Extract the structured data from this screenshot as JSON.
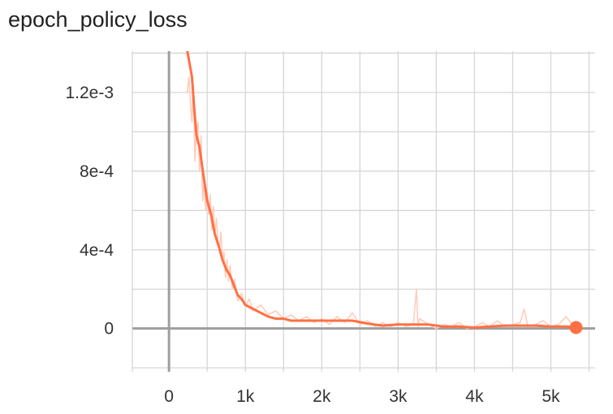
{
  "chart_data": {
    "type": "line",
    "title": "epoch_policy_loss",
    "xlabel": "",
    "ylabel": "",
    "xlim": [
      -480,
      5580
    ],
    "ylim": [
      -0.00022,
      0.00141
    ],
    "x_ticks": [
      0,
      1000,
      2000,
      3000,
      4000,
      5000
    ],
    "x_tick_labels": [
      "0",
      "1k",
      "2k",
      "3k",
      "4k",
      "5k"
    ],
    "y_ticks": [
      0,
      0.0004,
      0.0008,
      0.0012
    ],
    "y_tick_labels": [
      "0",
      "4e-4",
      "8e-4",
      "1.2e-3"
    ],
    "grid": true,
    "legend": "none",
    "colors": {
      "smoothed": "#ff7043",
      "raw": "#ffccbc",
      "axis": "#9e9e9e",
      "grid": "#d6d6d6"
    },
    "series": [
      {
        "smoothed": true,
        "x": [
          240,
          300,
          330,
          360,
          400,
          450,
          500,
          550,
          600,
          650,
          700,
          750,
          800,
          850,
          900,
          950,
          1000,
          1100,
          1200,
          1300,
          1400,
          1500,
          1600,
          1700,
          1800,
          1900,
          2000,
          2200,
          2400,
          2600,
          2800,
          3000,
          3200,
          3400,
          3600,
          3800,
          4000,
          4200,
          4400,
          4600,
          4800,
          5000,
          5200,
          5330
        ],
        "y": [
          0.00141,
          0.00128,
          0.00112,
          0.00098,
          0.00092,
          0.00078,
          0.00065,
          0.00058,
          0.00048,
          0.00042,
          0.00035,
          0.0003,
          0.00027,
          0.00022,
          0.00017,
          0.00015,
          0.00012,
          0.0001,
          8e-05,
          6e-05,
          5e-05,
          5e-05,
          4e-05,
          4e-05,
          4e-05,
          4e-05,
          4e-05,
          4e-05,
          4e-05,
          2.5e-05,
          1.5e-05,
          2e-05,
          2e-05,
          2e-05,
          1e-05,
          1e-05,
          5e-06,
          1e-05,
          1.5e-05,
          1.5e-05,
          1.5e-05,
          1e-05,
          1e-05,
          5e-06
        ]
      },
      {
        "smoothed": false,
        "x": [
          240,
          260,
          280,
          300,
          320,
          340,
          360,
          380,
          400,
          420,
          440,
          460,
          480,
          500,
          520,
          540,
          560,
          580,
          600,
          620,
          640,
          660,
          680,
          700,
          720,
          740,
          760,
          780,
          800,
          830,
          860,
          900,
          950,
          1000,
          1050,
          1100,
          1200,
          1300,
          1400,
          1500,
          1600,
          1700,
          1800,
          1900,
          2000,
          2100,
          2200,
          2300,
          2400,
          2500,
          2600,
          2700,
          2800,
          2900,
          3000,
          3100,
          3200,
          3240,
          3260,
          3280,
          3400,
          3500,
          3600,
          3700,
          3800,
          3900,
          4000,
          4100,
          4200,
          4300,
          4400,
          4500,
          4600,
          4650,
          4700,
          4800,
          4900,
          5000,
          5100,
          5200,
          5300,
          5330
        ],
        "y": [
          0.0012,
          0.00128,
          0.00115,
          0.00105,
          0.00124,
          0.00085,
          0.001,
          0.00105,
          0.0008,
          0.00098,
          0.00065,
          0.00075,
          0.0006,
          0.0007,
          0.00058,
          0.00068,
          0.0005,
          0.00062,
          0.00048,
          0.00056,
          0.00045,
          0.0004,
          0.00049,
          0.00035,
          0.00039,
          0.00026,
          0.00035,
          0.00024,
          0.00032,
          0.0002,
          0.00025,
          0.00014,
          0.00018,
          0.00011,
          0.00015,
          9e-05,
          0.00012,
          7e-05,
          9e-05,
          5e-05,
          7e-05,
          4e-05,
          6e-05,
          3e-05,
          5e-05,
          2e-05,
          6e-05,
          3e-05,
          8e-05,
          2e-05,
          4e-05,
          1e-05,
          3e-05,
          1e-05,
          3e-05,
          1e-05,
          2e-05,
          0.0002,
          1e-05,
          5e-05,
          2e-05,
          0.0,
          2e-05,
          1e-05,
          3e-05,
          0.0,
          1e-05,
          3e-05,
          1e-05,
          4e-05,
          1e-05,
          2e-05,
          3e-05,
          0.0001,
          1e-05,
          2e-05,
          4e-05,
          1e-05,
          2e-05,
          6e-05,
          1e-05,
          1e-05
        ]
      }
    ]
  }
}
